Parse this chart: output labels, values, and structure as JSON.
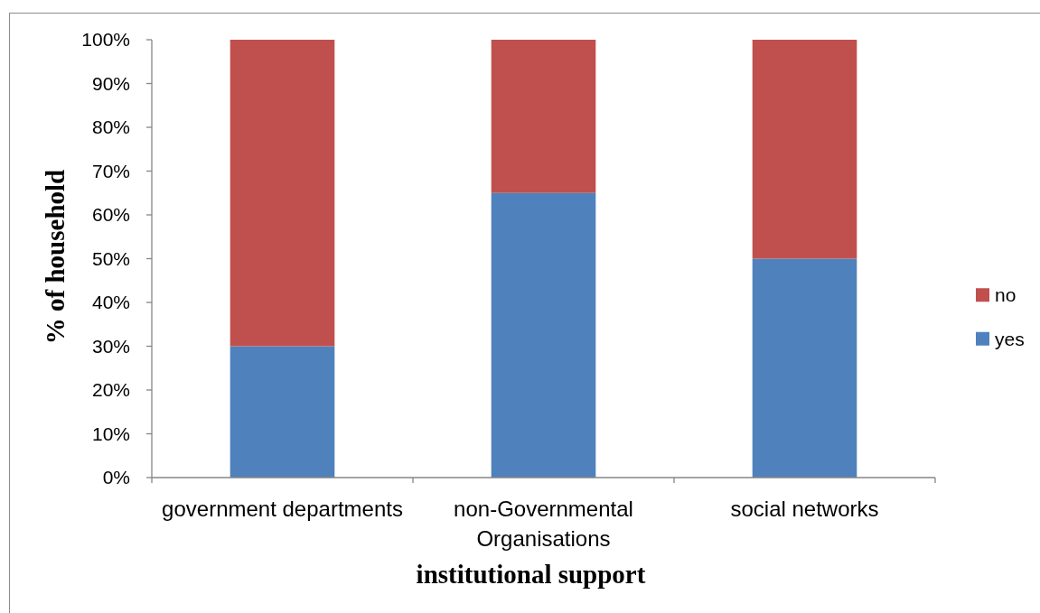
{
  "chart_data": {
    "type": "bar",
    "stacked": true,
    "xlabel": "institutional support",
    "ylabel": "% of household",
    "categories": [
      "government departments",
      "non-Governmental Organisations",
      "social networks"
    ],
    "series": [
      {
        "name": "yes",
        "color": "#4f81bd",
        "values": [
          30,
          65,
          50
        ]
      },
      {
        "name": "no",
        "color": "#c0504d",
        "values": [
          70,
          35,
          50
        ]
      }
    ],
    "ylim": [
      0,
      100
    ],
    "yticks": [
      {
        "value": 0,
        "label": "0%"
      },
      {
        "value": 10,
        "label": "10%"
      },
      {
        "value": 20,
        "label": "20%"
      },
      {
        "value": 30,
        "label": "30%"
      },
      {
        "value": 40,
        "label": "40%"
      },
      {
        "value": 50,
        "label": "50%"
      },
      {
        "value": 60,
        "label": "60%"
      },
      {
        "value": 70,
        "label": "70%"
      },
      {
        "value": 80,
        "label": "80%"
      },
      {
        "value": 90,
        "label": "90%"
      },
      {
        "value": 100,
        "label": "100%"
      }
    ],
    "legend": "right"
  }
}
